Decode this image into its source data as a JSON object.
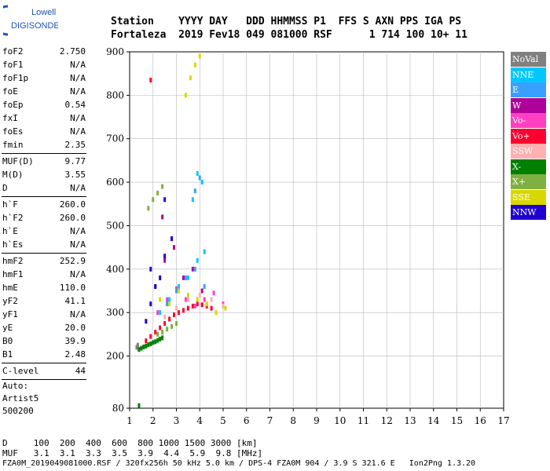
{
  "logo": {
    "line1": "Lowell",
    "line2": "DIGISONDE"
  },
  "header": {
    "row1": "Station    YYYY DAY   DDD HHMMSS P1  FFS S AXN PPS IGA PS",
    "row2": "Fortaleza  2019 Fev18 049 081000 RSF      1 714 100 10+ 11"
  },
  "params": [
    [
      {
        "label": "foF2",
        "value": "2.750"
      },
      {
        "label": "foF1",
        "value": "N/A"
      },
      {
        "label": "foF1p",
        "value": "N/A"
      },
      {
        "label": "foE",
        "value": "N/A"
      },
      {
        "label": "foEp",
        "value": "0.54"
      },
      {
        "label": "fxI",
        "value": "N/A"
      },
      {
        "label": "foEs",
        "value": "N/A"
      },
      {
        "label": "fmin",
        "value": "2.35"
      }
    ],
    [
      {
        "label": "MUF(D)",
        "value": "9.77"
      },
      {
        "label": "M(D)",
        "value": "3.55"
      },
      {
        "label": "D",
        "value": "N/A"
      }
    ],
    [
      {
        "label": "h`F",
        "value": "260.0"
      },
      {
        "label": "h`F2",
        "value": "260.0"
      },
      {
        "label": "h`E",
        "value": "N/A"
      },
      {
        "label": "h`Es",
        "value": "N/A"
      }
    ],
    [
      {
        "label": "hmF2",
        "value": "252.9"
      },
      {
        "label": "hmF1",
        "value": "N/A"
      },
      {
        "label": "hmE",
        "value": "110.0"
      },
      {
        "label": "yF2",
        "value": "41.1"
      },
      {
        "label": "yF1",
        "value": "N/A"
      },
      {
        "label": "yE",
        "value": "20.0"
      },
      {
        "label": "B0",
        "value": "39.9"
      },
      {
        "label": "B1",
        "value": "2.48"
      }
    ],
    [
      {
        "label": "C-level",
        "value": "44"
      }
    ]
  ],
  "auto": {
    "line1": "Auto:",
    "line2": "Artist5",
    "line3": "500200"
  },
  "legend": [
    {
      "label": "NoVal",
      "color": "#808080"
    },
    {
      "label": "NNE",
      "color": "#00c8ff"
    },
    {
      "label": "E",
      "color": "#3aa0ff"
    },
    {
      "label": "W",
      "color": "#b0009a"
    },
    {
      "label": "Vo-",
      "color": "#ff40c0"
    },
    {
      "label": "Vo+",
      "color": "#ff0030"
    },
    {
      "label": "SSW",
      "color": "#ffb0b0"
    },
    {
      "label": "X-",
      "color": "#008000"
    },
    {
      "label": "X+",
      "color": "#80b040"
    },
    {
      "label": "SSE",
      "color": "#d8d800"
    },
    {
      "label": "NNW",
      "color": "#2000d0"
    }
  ],
  "footer": {
    "row1": "D     100  200  400  600  800 1000 1500 3000 [km]",
    "row2": "MUF   3.1  3.1  3.3  3.5  3.9  4.4  5.9  9.8 [MHz]",
    "row3": "FZA0M_2019049081000.RSF / 320fx256h 50 kHz 5.0 km / DPS-4 FZA0M 904 / 3.9 S 321.6 E   Ion2Png 1.3.20"
  },
  "chart_data": {
    "type": "scatter",
    "xlabel": "",
    "ylabel": "",
    "xlim": [
      1,
      17
    ],
    "ylim": [
      80,
      900
    ],
    "x_ticks": [
      1,
      2,
      3,
      4,
      5,
      6,
      7,
      8,
      9,
      10,
      11,
      12,
      13,
      14,
      15,
      16,
      17
    ],
    "y_ticks": [
      80,
      200,
      300,
      400,
      500,
      600,
      700,
      800,
      900
    ],
    "grid": true,
    "series": [
      {
        "name": "NoVal",
        "x": [
          1.3,
          1.35
        ],
        "y": [
          220,
          225
        ]
      },
      {
        "name": "X-",
        "x": [
          1.4,
          1.5,
          1.6,
          1.7,
          1.8,
          1.9,
          2.0,
          2.1,
          2.2,
          2.3,
          2.4,
          1.4
        ],
        "y": [
          215,
          218,
          221,
          223,
          226,
          228,
          231,
          233,
          236,
          239,
          242,
          86
        ]
      },
      {
        "name": "X+",
        "x": [
          2.2,
          2.4,
          2.6,
          2.8,
          3.0,
          1.8,
          2.0,
          2.2,
          2.4
        ],
        "y": [
          250,
          255,
          262,
          268,
          275,
          540,
          560,
          575,
          590
        ]
      },
      {
        "name": "Vo+",
        "x": [
          1.7,
          1.9,
          2.1,
          2.3,
          2.5,
          2.7,
          2.9,
          3.1,
          3.3,
          3.5,
          3.7,
          3.9,
          4.1,
          4.3,
          4.5,
          1.9
        ],
        "y": [
          235,
          245,
          255,
          265,
          275,
          285,
          295,
          300,
          305,
          310,
          315,
          320,
          318,
          315,
          310,
          835
        ]
      },
      {
        "name": "Vo-",
        "x": [
          2.2,
          2.6,
          3.0,
          3.4,
          3.8,
          4.2,
          4.6,
          5.0
        ],
        "y": [
          300,
          330,
          355,
          330,
          315,
          330,
          345,
          320
        ]
      },
      {
        "name": "W",
        "x": [
          2.1,
          2.5,
          2.9,
          3.3,
          3.7,
          4.1,
          2.4,
          2.8
        ],
        "y": [
          360,
          420,
          450,
          380,
          400,
          350,
          520,
          470
        ]
      },
      {
        "name": "NNE",
        "x": [
          2.3,
          2.7,
          3.1,
          3.5,
          3.9,
          4.2,
          4.1,
          3.9,
          3.7
        ],
        "y": [
          300,
          330,
          360,
          380,
          420,
          440,
          600,
          620,
          560
        ]
      },
      {
        "name": "E",
        "x": [
          2.6,
          3.0,
          3.4,
          3.8,
          4.2,
          4.0,
          3.8
        ],
        "y": [
          320,
          350,
          380,
          400,
          360,
          610,
          580
        ]
      },
      {
        "name": "SSE",
        "x": [
          2.3,
          2.7,
          3.1,
          3.5,
          3.9,
          4.3,
          4.7,
          5.1,
          3.4,
          3.6,
          3.8,
          4.0
        ],
        "y": [
          330,
          320,
          350,
          340,
          330,
          320,
          300,
          310,
          800,
          840,
          870,
          890
        ]
      },
      {
        "name": "SSW",
        "x": [
          2.5,
          3.0,
          3.5,
          4.0,
          4.5,
          5.0
        ],
        "y": [
          290,
          310,
          330,
          340,
          330,
          315
        ]
      },
      {
        "name": "NNW",
        "x": [
          1.7,
          1.9,
          2.1,
          2.3,
          2.5,
          2.8,
          2.5,
          1.9
        ],
        "y": [
          280,
          320,
          360,
          380,
          430,
          470,
          560,
          400
        ]
      }
    ]
  }
}
